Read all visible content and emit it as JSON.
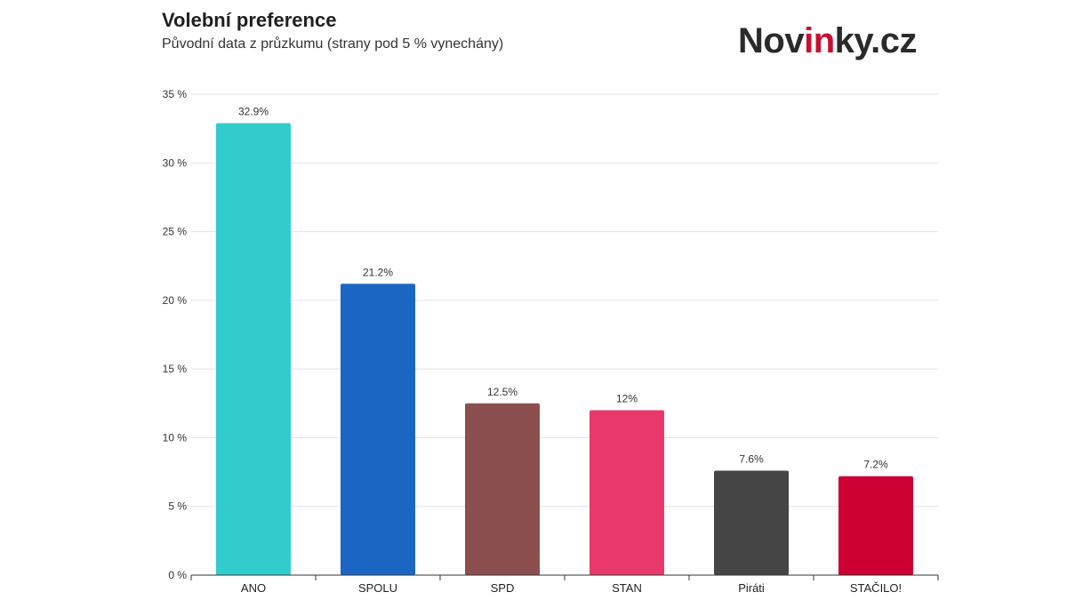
{
  "header": {
    "title": "Volební preference",
    "subtitle": "Původní data z průzkumu (strany pod 5 % vynechány)"
  },
  "logo": {
    "part1": "Nov",
    "part2": "in",
    "part3": "ky.cz",
    "text_color": "#2a2a2a",
    "accent_color": "#c8102e"
  },
  "chart_data": {
    "type": "bar",
    "title": "Volební preference",
    "subtitle": "Původní data z průzkumu (strany pod 5 % vynechány)",
    "categories": [
      "ANO",
      "SPOLU",
      "SPD",
      "STAN",
      "Piráti",
      "STAČILO!"
    ],
    "values": [
      32.9,
      21.2,
      12.5,
      12,
      7.6,
      7.2
    ],
    "value_labels": [
      "32.9%",
      "21.2%",
      "12.5%",
      "12%",
      "7.6%",
      "7.2%"
    ],
    "colors": [
      "#33cccc",
      "#1a66c2",
      "#8b4f4f",
      "#e8396a",
      "#454545",
      "#cc0033"
    ],
    "xlabel": "",
    "ylabel": "",
    "ylim": [
      0,
      35
    ],
    "y_ticks": [
      0,
      5,
      10,
      15,
      20,
      25,
      30,
      35
    ],
    "y_tick_labels": [
      "0 %",
      "5 %",
      "10 %",
      "15 %",
      "20 %",
      "25 %",
      "30 %",
      "35 %"
    ],
    "grid": true,
    "legend": "none"
  }
}
